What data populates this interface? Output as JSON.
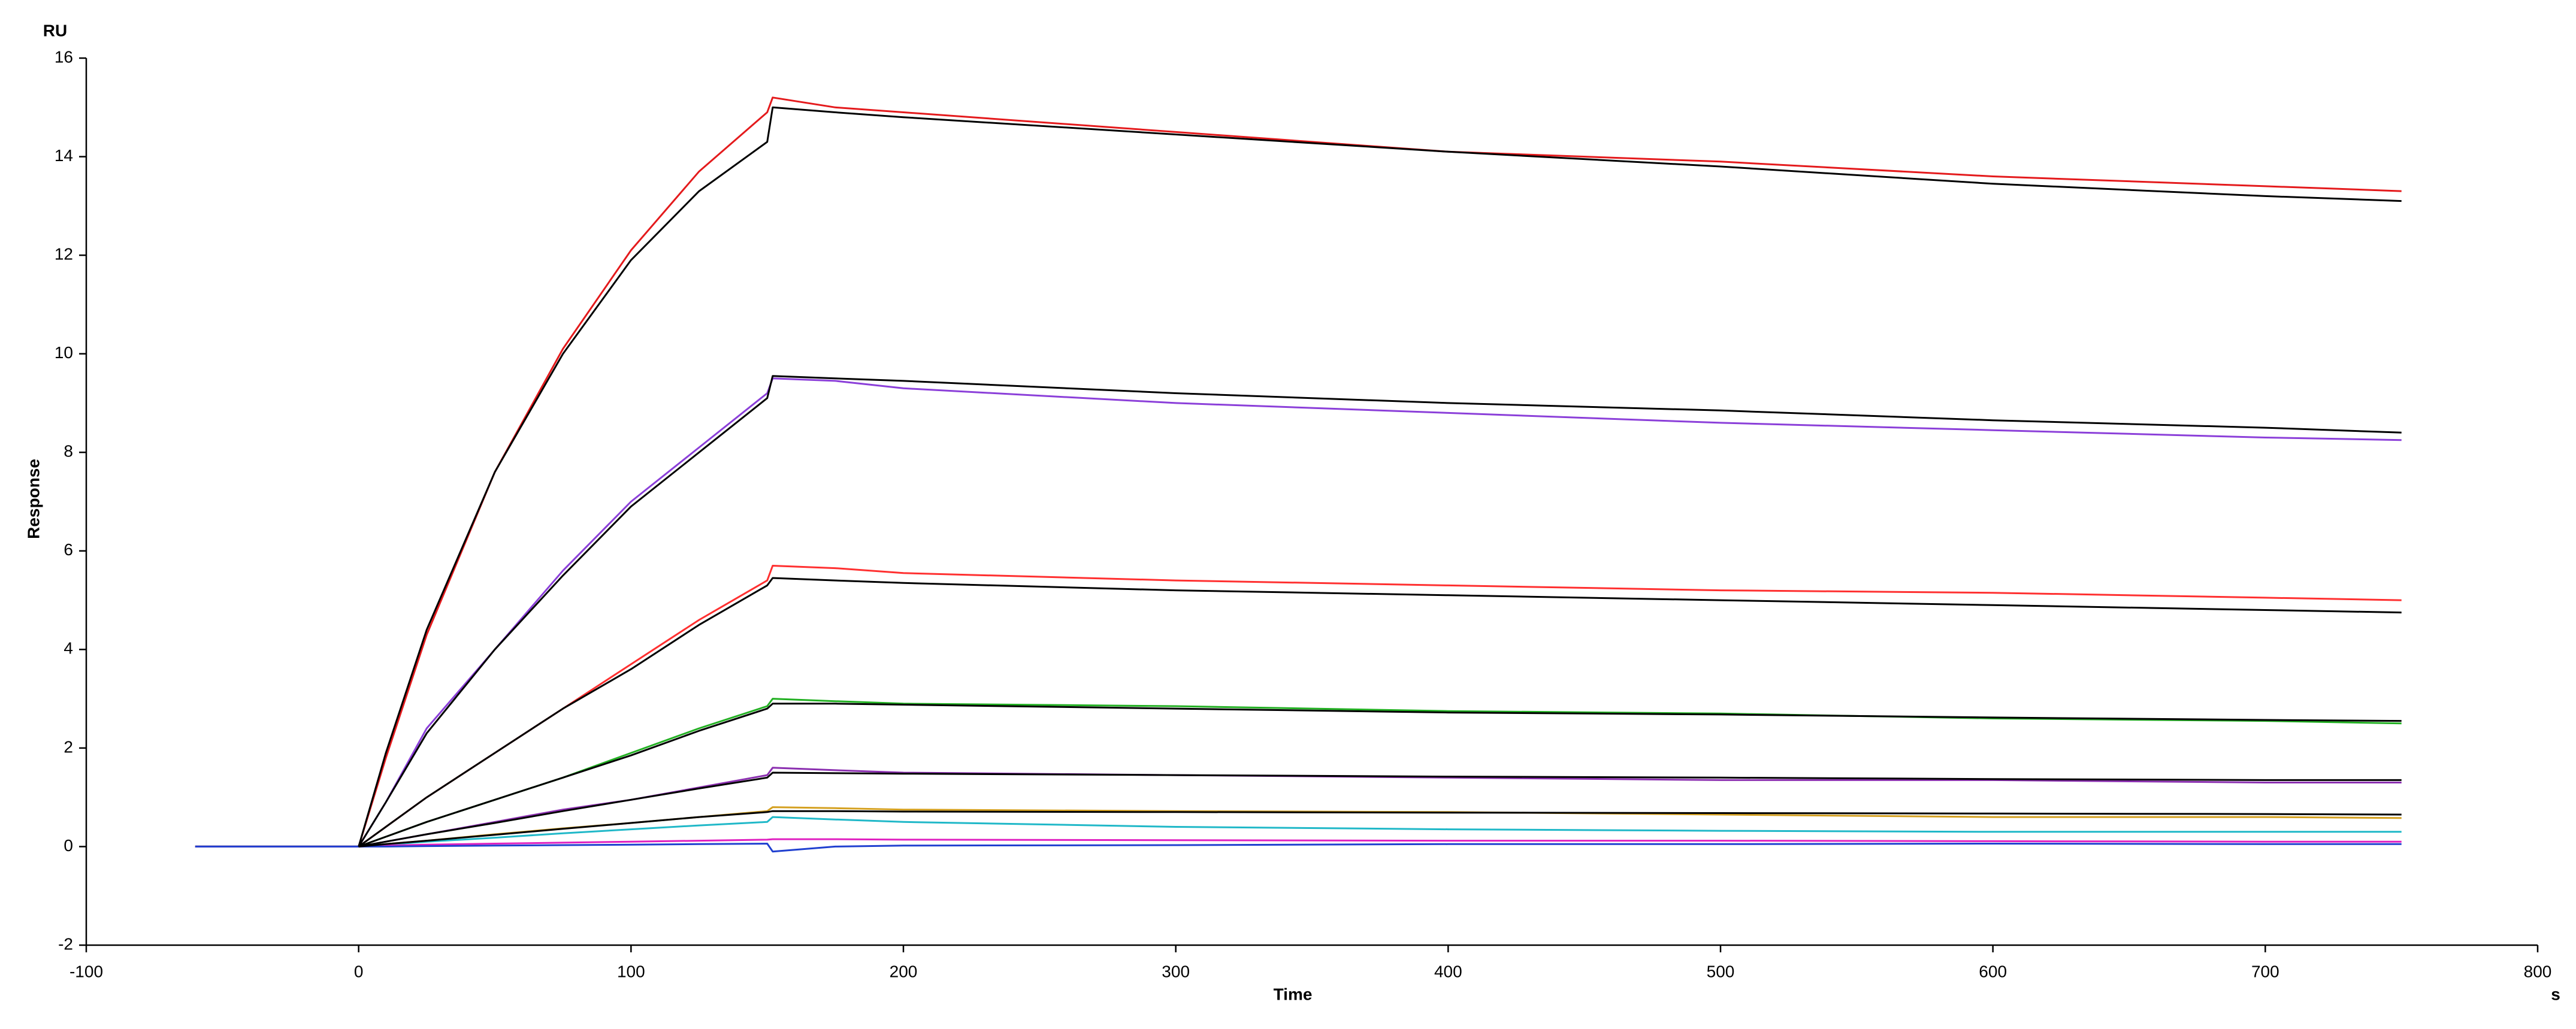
{
  "chart_data": {
    "type": "line",
    "y_unit": "RU",
    "ylabel": "Response",
    "xlabel": "Time",
    "x_unit": "s",
    "x": [
      -60,
      -40,
      -20,
      0,
      10,
      25,
      50,
      75,
      100,
      125,
      150,
      152,
      175,
      200,
      300,
      400,
      500,
      600,
      700,
      750
    ],
    "series": [
      {
        "color": "#e41a1c",
        "values": [
          0,
          0,
          0,
          0,
          1.8,
          4.3,
          7.6,
          10.1,
          12.1,
          13.7,
          14.9,
          15.2,
          15.0,
          14.9,
          14.5,
          14.1,
          13.9,
          13.6,
          13.4,
          13.3
        ]
      },
      {
        "color": "#8b3fd9",
        "values": [
          0,
          0,
          0,
          0,
          0.9,
          2.4,
          4.0,
          5.6,
          7.0,
          8.1,
          9.2,
          9.5,
          9.45,
          9.3,
          9.0,
          8.8,
          8.6,
          8.45,
          8.3,
          8.25
        ]
      },
      {
        "color": "#ff3030",
        "values": [
          0,
          0,
          0,
          0,
          0.4,
          1.0,
          1.9,
          2.8,
          3.7,
          4.6,
          5.4,
          5.7,
          5.65,
          5.55,
          5.4,
          5.3,
          5.2,
          5.15,
          5.05,
          5.0
        ]
      },
      {
        "color": "#22b022",
        "values": [
          0,
          0,
          0,
          0,
          0.2,
          0.5,
          0.95,
          1.4,
          1.9,
          2.4,
          2.85,
          3.0,
          2.95,
          2.9,
          2.85,
          2.75,
          2.7,
          2.6,
          2.55,
          2.5
        ]
      },
      {
        "color": "#8b2fb0",
        "values": [
          0,
          0,
          0,
          0,
          0.1,
          0.25,
          0.5,
          0.75,
          0.95,
          1.2,
          1.45,
          1.6,
          1.55,
          1.5,
          1.45,
          1.4,
          1.35,
          1.35,
          1.3,
          1.3
        ]
      },
      {
        "color": "#d4a020",
        "values": [
          0,
          0,
          0,
          0,
          0.05,
          0.12,
          0.25,
          0.37,
          0.48,
          0.6,
          0.72,
          0.8,
          0.78,
          0.75,
          0.72,
          0.7,
          0.65,
          0.6,
          0.6,
          0.58
        ]
      },
      {
        "color": "#20b8c8",
        "values": [
          0,
          0,
          0,
          0,
          0.04,
          0.1,
          0.18,
          0.27,
          0.35,
          0.43,
          0.5,
          0.6,
          0.55,
          0.5,
          0.4,
          0.35,
          0.32,
          0.3,
          0.3,
          0.3
        ]
      },
      {
        "color": "#e020c0",
        "values": [
          0,
          0,
          0,
          0,
          0.02,
          0.04,
          0.06,
          0.08,
          0.1,
          0.12,
          0.14,
          0.15,
          0.15,
          0.14,
          0.13,
          0.12,
          0.12,
          0.11,
          0.1,
          0.1
        ]
      },
      {
        "color": "#2040d0",
        "values": [
          0,
          0,
          0,
          0,
          0,
          0.01,
          0.02,
          0.03,
          0.04,
          0.05,
          0.06,
          -0.1,
          0.0,
          0.02,
          0.03,
          0.05,
          0.05,
          0.06,
          0.05,
          0.05
        ]
      },
      {
        "color": "#000000",
        "values": [
          null,
          null,
          null,
          0,
          1.9,
          4.4,
          7.6,
          10.0,
          11.9,
          13.3,
          14.3,
          15.0,
          14.9,
          14.8,
          14.45,
          14.1,
          13.8,
          13.45,
          13.2,
          13.1
        ]
      },
      {
        "color": "#000000",
        "values": [
          null,
          null,
          null,
          0,
          0.9,
          2.3,
          4.0,
          5.5,
          6.9,
          8.0,
          9.1,
          9.55,
          9.5,
          9.45,
          9.2,
          9.0,
          8.85,
          8.65,
          8.5,
          8.4
        ]
      },
      {
        "color": "#000000",
        "values": [
          null,
          null,
          null,
          0,
          0.4,
          1.0,
          1.9,
          2.8,
          3.6,
          4.5,
          5.3,
          5.45,
          5.4,
          5.35,
          5.2,
          5.1,
          5.0,
          4.9,
          4.8,
          4.75
        ]
      },
      {
        "color": "#000000",
        "values": [
          null,
          null,
          null,
          0,
          0.2,
          0.5,
          0.95,
          1.4,
          1.85,
          2.35,
          2.8,
          2.9,
          2.9,
          2.88,
          2.8,
          2.72,
          2.68,
          2.62,
          2.57,
          2.55
        ]
      },
      {
        "color": "#000000",
        "values": [
          null,
          null,
          null,
          0,
          0.1,
          0.25,
          0.48,
          0.72,
          0.95,
          1.18,
          1.4,
          1.5,
          1.49,
          1.48,
          1.45,
          1.42,
          1.4,
          1.37,
          1.35,
          1.35
        ]
      },
      {
        "color": "#000000",
        "values": [
          null,
          null,
          null,
          0,
          0.05,
          0.12,
          0.24,
          0.36,
          0.48,
          0.6,
          0.7,
          0.72,
          0.72,
          0.71,
          0.7,
          0.69,
          0.68,
          0.67,
          0.66,
          0.65
        ]
      }
    ],
    "xlim": [
      -100,
      800
    ],
    "xticks": [
      -100,
      0,
      100,
      200,
      300,
      400,
      500,
      600,
      700,
      800
    ],
    "ylim": [
      -2,
      16
    ],
    "yticks": [
      -2,
      0,
      2,
      4,
      6,
      8,
      10,
      12,
      14,
      16
    ],
    "grid": false
  }
}
